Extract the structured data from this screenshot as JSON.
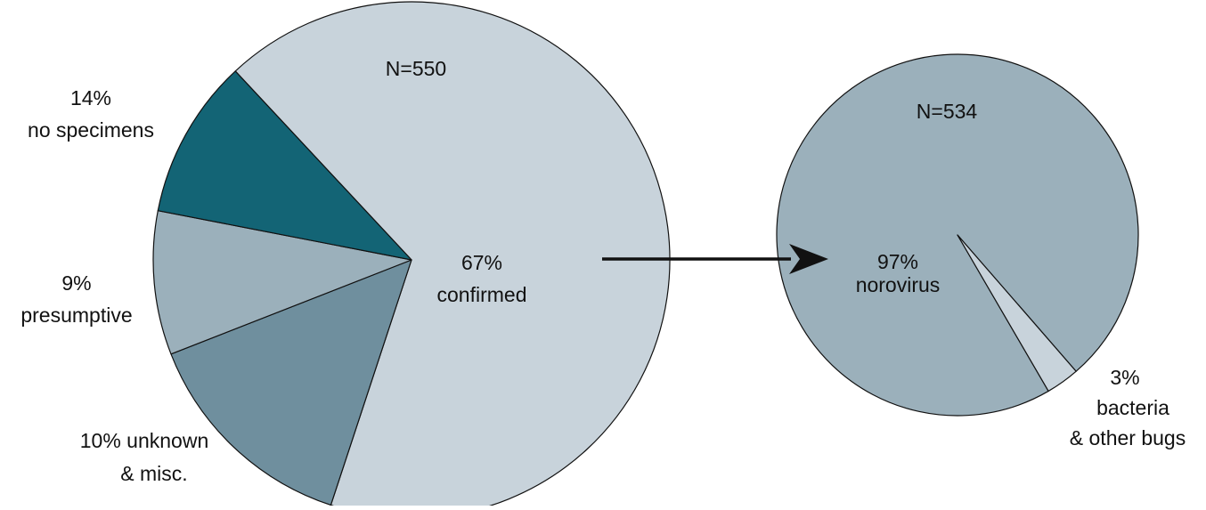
{
  "chart_data": [
    {
      "type": "pie",
      "id": "outbreaks",
      "total_label": "N=550",
      "slices": [
        {
          "key": "confirmed",
          "value": 67,
          "pct_label": "67%",
          "label": "confirmed",
          "color": "#c8d3db"
        },
        {
          "key": "no-specimens",
          "value": 14,
          "pct_label": "14%",
          "label": "no specimens",
          "color": "#6f8f9e"
        },
        {
          "key": "presumptive",
          "value": 9,
          "pct_label": "9%",
          "label": "presumptive",
          "color": "#9bb0bb"
        },
        {
          "key": "unknown-misc",
          "value": 10,
          "pct_label": "10% unknown",
          "label": "& misc.",
          "color": "#136475"
        }
      ]
    },
    {
      "type": "pie",
      "id": "confirmed-breakdown",
      "total_label": "N=534",
      "slices": [
        {
          "key": "norovirus",
          "value": 97,
          "pct_label": "97%",
          "label": "norovirus",
          "color": "#9bb0bb"
        },
        {
          "key": "bacteria",
          "value": 3,
          "pct_label": "3%",
          "label": "bacteria",
          "label2": "& other bugs",
          "color": "#c8d3db"
        }
      ]
    }
  ]
}
